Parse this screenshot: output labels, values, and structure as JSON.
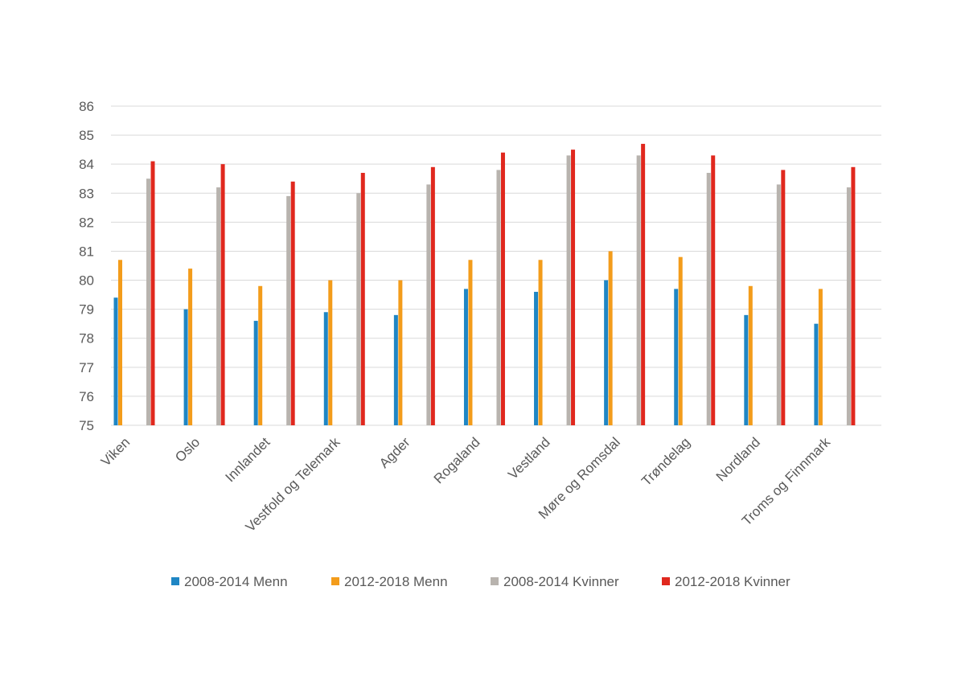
{
  "chart_data": {
    "type": "bar",
    "title": "",
    "xlabel": "",
    "ylabel": "",
    "ylim": [
      75,
      86
    ],
    "yticks": [
      75,
      76,
      77,
      78,
      79,
      80,
      81,
      82,
      83,
      84,
      85,
      86
    ],
    "grid": true,
    "legend_position": "bottom",
    "categories": [
      "Viken",
      "Oslo",
      "Innlandet",
      "Vestfold og Telemark",
      "Agder",
      "Rogaland",
      "Vestland",
      "Møre og Romsdal",
      "Trøndelag",
      "Nordland",
      "Troms og Finnmark"
    ],
    "series": [
      {
        "name": "2008-2014 Menn",
        "color": "#1f86c4",
        "values": [
          79.4,
          79.0,
          78.6,
          78.9,
          78.8,
          79.7,
          79.6,
          80.0,
          79.7,
          78.8,
          78.5
        ]
      },
      {
        "name": "2012-2018 Menn",
        "color": "#f39c1b",
        "values": [
          80.7,
          80.4,
          79.8,
          80.0,
          80.0,
          80.7,
          80.7,
          81.0,
          80.8,
          79.8,
          79.7
        ]
      },
      {
        "name": "2008-2014 Kvinner",
        "color": "#b8b3ae",
        "values": [
          83.5,
          83.2,
          82.9,
          83.0,
          83.3,
          83.8,
          84.3,
          84.3,
          83.7,
          83.3,
          83.2
        ]
      },
      {
        "name": "2012-2018 Kvinner",
        "color": "#e0281e",
        "values": [
          84.1,
          84.0,
          83.4,
          83.7,
          83.9,
          84.4,
          84.5,
          84.7,
          84.3,
          83.8,
          83.9
        ]
      }
    ]
  }
}
